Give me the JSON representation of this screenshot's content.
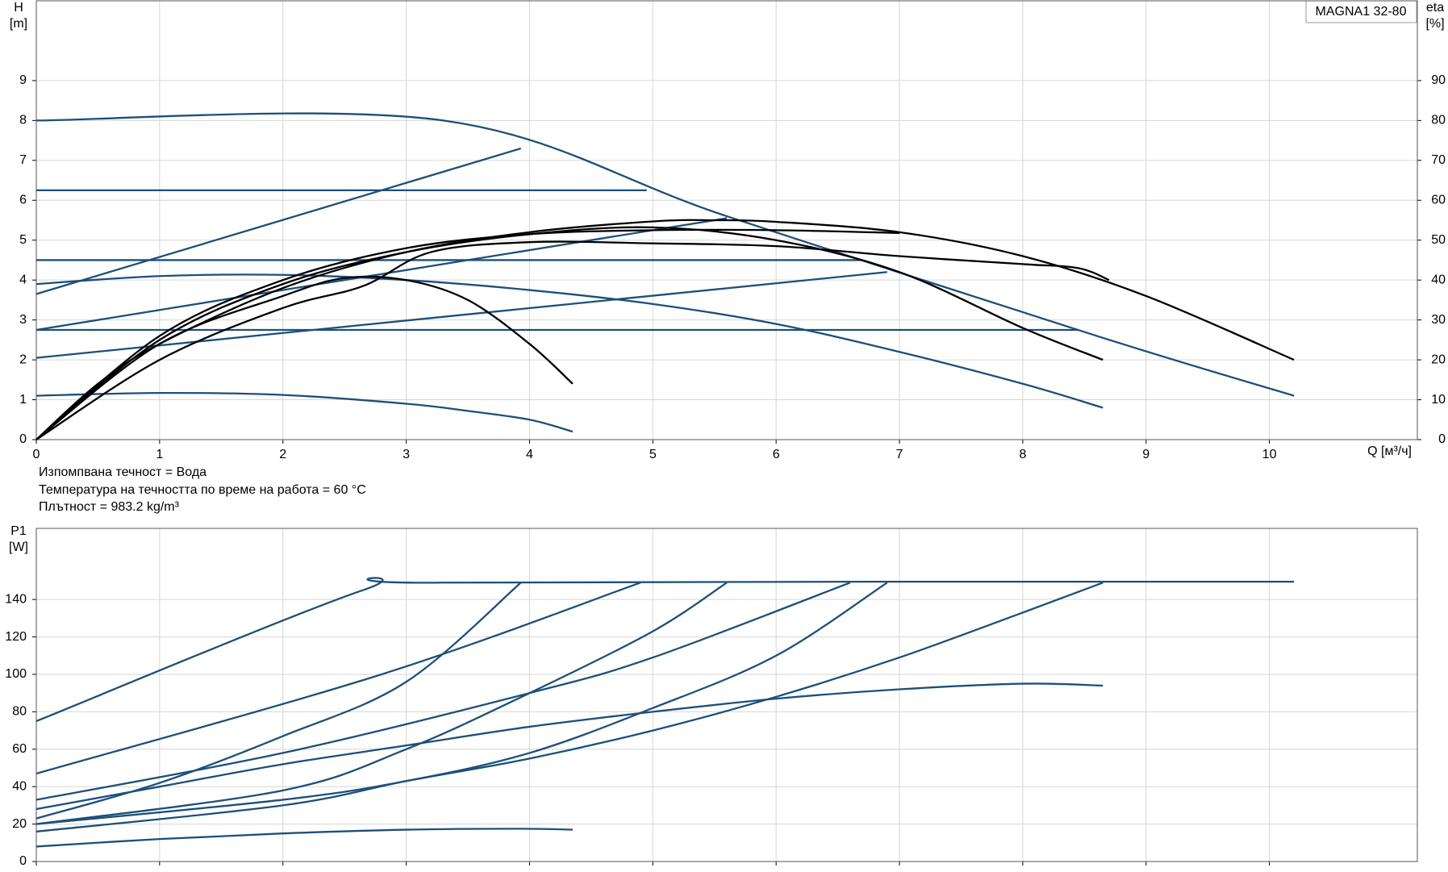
{
  "chart_data": [
    {
      "type": "line",
      "title": "MAGNA1 32-80",
      "y_label": "H",
      "y_unit": "[m]",
      "y2_label": "eta",
      "y2_unit": "[%]",
      "x_label": "Q [м³/ч]",
      "annotations": [
        "Изпомпвана течност = Вода",
        "Температура на течността по време на работа = 60 °C",
        "Плътност = 983.2 kg/m³"
      ],
      "xlim": [
        0,
        11.2
      ],
      "xticks": [
        0,
        1,
        2,
        3,
        4,
        5,
        6,
        7,
        8,
        9,
        10
      ],
      "ylim": [
        0,
        11
      ],
      "yticks": [
        0,
        1,
        2,
        3,
        4,
        5,
        6,
        7,
        8,
        9
      ],
      "y2lim": [
        0,
        110
      ],
      "y2ticks": [
        0,
        10,
        20,
        30,
        40,
        50,
        60,
        70,
        80,
        90
      ],
      "grid": true,
      "series": [
        {
          "color": "#1d4f7a",
          "x": [
            0,
            3.3,
            5.6,
            8.6,
            10.2
          ],
          "values": [
            8,
            8,
            5.6,
            2.6,
            1.1
          ]
        },
        {
          "color": "#1d4f7a",
          "x": [
            0,
            3.93
          ],
          "values": [
            3.65,
            7.3
          ]
        },
        {
          "color": "#1d4f7a",
          "x": [
            0,
            5.6
          ],
          "values": [
            2.75,
            5.55
          ]
        },
        {
          "color": "#1d4f7a",
          "x": [
            0,
            6.9
          ],
          "values": [
            2.05,
            4.2
          ]
        },
        {
          "color": "#1d4f7a",
          "x": [
            0,
            4.95
          ],
          "values": [
            6.25,
            6.25
          ]
        },
        {
          "color": "#1d4f7a",
          "x": [
            0,
            6.7
          ],
          "values": [
            4.5,
            4.5
          ]
        },
        {
          "color": "#1d4f7a",
          "x": [
            0,
            8.45
          ],
          "values": [
            2.75,
            2.75
          ]
        },
        {
          "color": "#1d4f7a",
          "x": [
            0,
            1,
            2,
            3,
            4,
            5,
            6,
            7,
            8,
            8.65
          ],
          "values": [
            3.9,
            4.1,
            4.13,
            4.0,
            3.75,
            3.4,
            2.9,
            2.2,
            1.4,
            0.8
          ]
        },
        {
          "color": "#1d4f7a",
          "x": [
            0,
            1,
            2,
            3,
            3.5,
            4,
            4.35
          ],
          "values": [
            1.1,
            1.17,
            1.12,
            0.9,
            0.72,
            0.5,
            0.2
          ]
        },
        {
          "color": "#000000",
          "axis": "y2",
          "x": [
            0,
            0.5,
            1,
            2,
            3,
            4,
            5,
            5.5,
            6,
            7,
            8,
            9,
            10.2
          ],
          "values": [
            0,
            14,
            24,
            38,
            47,
            52,
            54.7,
            55,
            54.6,
            52,
            46,
            36,
            20
          ]
        },
        {
          "color": "#000000",
          "axis": "y2",
          "x": [
            0,
            1,
            2,
            3,
            4,
            5,
            6,
            7,
            8,
            8.65
          ],
          "values": [
            0,
            25,
            39,
            47,
            51.5,
            53.2,
            50,
            42,
            28,
            20
          ]
        },
        {
          "color": "#000000",
          "axis": "y2",
          "x": [
            0,
            1,
            2,
            2.5,
            3,
            3.5,
            4,
            4.35
          ],
          "values": [
            0,
            24,
            36,
            40.5,
            40,
            35,
            24,
            14
          ]
        },
        {
          "color": "#000000",
          "axis": "y2",
          "x": [
            0,
            1,
            2,
            2.65,
            3.2,
            4,
            5,
            6,
            7,
            8,
            8.45,
            8.7
          ],
          "values": [
            0,
            20,
            33,
            38.5,
            47,
            49.5,
            49.2,
            48.5,
            46,
            44,
            43,
            40
          ]
        },
        {
          "color": "#000000",
          "axis": "y2",
          "x": [
            0,
            1,
            2,
            3,
            4,
            5,
            6,
            7
          ],
          "values": [
            0,
            26,
            40,
            48,
            51.5,
            52.5,
            52.5,
            51.8
          ]
        }
      ]
    },
    {
      "type": "line",
      "y_label": "P1",
      "y_unit": "[W]",
      "xlim": [
        0,
        11.2
      ],
      "ylim": [
        0,
        178
      ],
      "yticks": [
        0,
        20,
        40,
        60,
        80,
        100,
        120,
        140
      ],
      "grid": true,
      "series": [
        {
          "color": "#1d4f7a",
          "x": [
            0,
            2.65,
            3.3,
            10.2
          ],
          "values": [
            75,
            145,
            149,
            149.5
          ]
        },
        {
          "color": "#1d4f7a",
          "x": [
            0,
            2.8,
            4.9
          ],
          "values": [
            47,
            100,
            149
          ]
        },
        {
          "color": "#1d4f7a",
          "x": [
            0,
            1,
            2,
            3,
            3.93
          ],
          "values": [
            23,
            42,
            67,
            96,
            149
          ]
        },
        {
          "color": "#1d4f7a",
          "x": [
            0,
            2,
            3,
            4,
            5,
            5.6
          ],
          "values": [
            20,
            38,
            60,
            90,
            123,
            149
          ]
        },
        {
          "color": "#1d4f7a",
          "x": [
            0,
            2,
            4,
            5,
            6.6
          ],
          "values": [
            33,
            58,
            90,
            109,
            149
          ]
        },
        {
          "color": "#1d4f7a",
          "x": [
            0,
            2,
            3,
            4,
            5,
            6,
            6.9
          ],
          "values": [
            20,
            33,
            43,
            58,
            82,
            110,
            149
          ]
        },
        {
          "color": "#1d4f7a",
          "x": [
            0,
            2,
            3,
            4,
            5,
            6,
            7,
            8,
            8.65
          ],
          "values": [
            16,
            30,
            43,
            55,
            70,
            88,
            109,
            133,
            149
          ]
        },
        {
          "color": "#1d4f7a",
          "x": [
            0,
            1,
            2,
            3,
            4,
            5,
            6,
            7,
            8,
            8.65
          ],
          "values": [
            28,
            40,
            52,
            62,
            72,
            80,
            87,
            92,
            95,
            94
          ]
        },
        {
          "color": "#1d4f7a",
          "x": [
            0,
            1,
            2,
            3,
            3.93,
            4.35
          ],
          "values": [
            8,
            12,
            15,
            17,
            17.5,
            17
          ]
        }
      ]
    }
  ]
}
